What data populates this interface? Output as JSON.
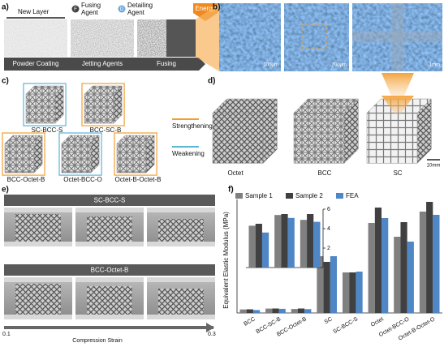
{
  "panel_labels": [
    "a)",
    "b)",
    "c)",
    "d)",
    "e)",
    "f)"
  ],
  "a": {
    "new_layer": "New Layer",
    "fusing_icon": "F",
    "fusing_agent": [
      "Fusing",
      "Agent"
    ],
    "detailing_icon": "D",
    "detailing_agent": [
      "Detailing",
      "Agent"
    ],
    "energy": "Energy",
    "steps": [
      "Powder Coating",
      "Jetting Agents",
      "Fusing"
    ]
  },
  "b": {
    "scale_bars": [
      "100μm",
      "200μm",
      "1mm"
    ]
  },
  "c": {
    "lattices": [
      "SC-BCC-S",
      "BCC-SC-B",
      "BCC-Octet-B",
      "Octet-BCC-O",
      "Octet-B-Octet-B"
    ],
    "legend": [
      "Strengthening",
      "Weakening"
    ]
  },
  "d": {
    "lattices": [
      "Octet",
      "BCC",
      "SC"
    ],
    "scale_bar": "10mm"
  },
  "e": {
    "tests": [
      "SC-BCC-S",
      "BCC-Octet-B"
    ],
    "strain_start": 0.1,
    "strain_end": 0.3,
    "axis_label": "Compression Strain"
  },
  "chart_data": {
    "type": "bar",
    "y_label": "Equivalent Elastic Modulus (MPa)",
    "categories": [
      "BCC",
      "BCC-SC-B",
      "BCC-Octet-B",
      "SC",
      "SC-BCC-S",
      "Octet",
      "Octet-BCC-O",
      "Octet-B-Octet-O"
    ],
    "series": [
      {
        "name": "Sample 1",
        "color": "#808080",
        "values": [
          4.3,
          5.4,
          4.9,
          70,
          50,
          111,
          94,
          125
        ]
      },
      {
        "name": "Sample 2",
        "color": "#404040",
        "values": [
          4.5,
          5.5,
          5.5,
          63,
          50,
          130,
          112,
          137
        ]
      },
      {
        "name": "FEA",
        "color": "#4f86c6",
        "values": [
          3.6,
          5.1,
          4.7,
          70,
          51,
          117,
          88,
          121
        ]
      }
    ],
    "ylim": [
      0,
      140
    ],
    "inset": {
      "ylim": [
        0,
        6
      ],
      "yticks": [
        2,
        4,
        6
      ]
    }
  }
}
